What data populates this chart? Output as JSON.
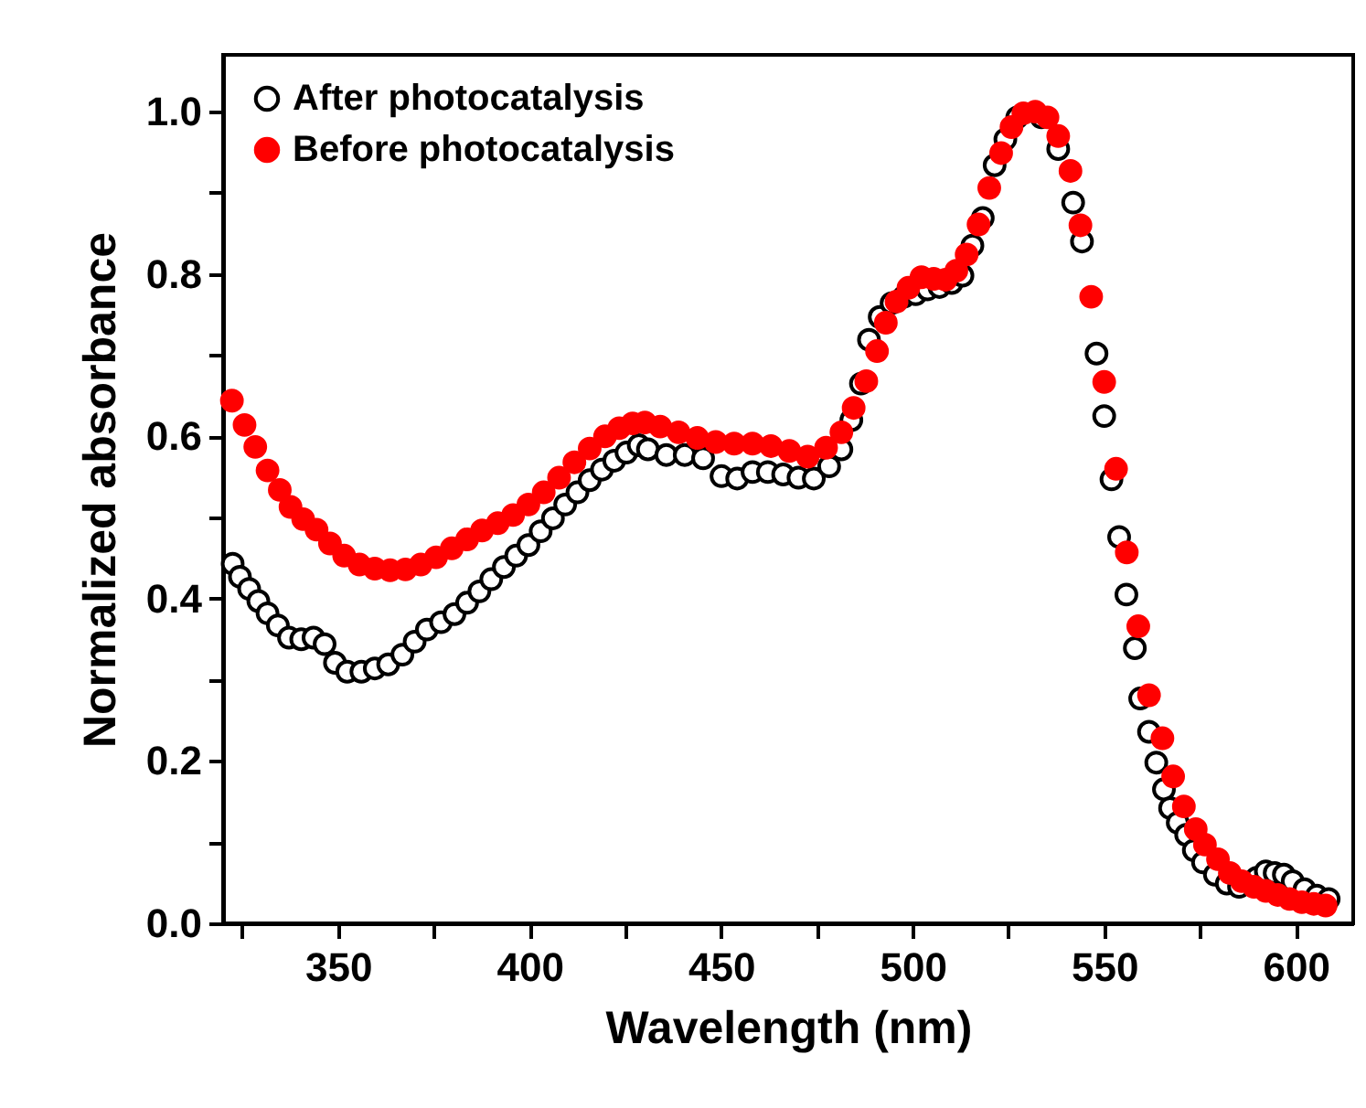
{
  "chart_data": {
    "type": "scatter",
    "xlabel": "Wavelength (nm)",
    "ylabel": "Normalized absorbance",
    "marker": "circle",
    "legend": "top left",
    "grid": false,
    "xlim": [
      320,
      615
    ],
    "ylim": [
      0,
      1.07
    ],
    "xticks": [
      {
        "value": 325,
        "label": null
      },
      350,
      {
        "value": 375,
        "label": null
      },
      400,
      {
        "value": 425,
        "label": null
      },
      450,
      {
        "value": 475,
        "label": null
      },
      500,
      {
        "value": 525,
        "label": null
      },
      550,
      {
        "value": 575,
        "label": null
      },
      600
    ],
    "yticks": [
      {
        "value": 0,
        "label": "0.0"
      },
      {
        "value": 0.1,
        "label": null
      },
      {
        "value": 0.2,
        "label": "0.2"
      },
      {
        "value": 0.3,
        "label": null
      },
      {
        "value": 0.4,
        "label": "0.4"
      },
      {
        "value": 0.5,
        "label": null
      },
      {
        "value": 0.6,
        "label": "0.6"
      },
      {
        "value": 0.7,
        "label": null
      },
      {
        "value": 0.8,
        "label": "0.8"
      },
      {
        "value": 0.9,
        "label": null
      },
      {
        "value": 1.0,
        "label": "1.0"
      }
    ],
    "series": [
      {
        "name": "After photocatalysis",
        "color": "#000000",
        "x": [
          322.5,
          324.4,
          326.8,
          329.2,
          331.6,
          334.3,
          337.2,
          340.4,
          343.6,
          346.5,
          349.2,
          352.4,
          356.1,
          359.6,
          363.1,
          366.8,
          370,
          373.2,
          376.9,
          380.4,
          383.7,
          386.9,
          390,
          393.3,
          396.5,
          399.7,
          402.9,
          406.1,
          409.3,
          412.5,
          415.7,
          418.9,
          422.1,
          425.3,
          428.5,
          430.9,
          435.7,
          440.5,
          445.3,
          450.1,
          454.2,
          458.2,
          462.2,
          466.2,
          470.2,
          474.2,
          478.2,
          481.4,
          484,
          486.5,
          488.6,
          491.4,
          494.5,
          497.7,
          500.8,
          503.9,
          507,
          510.2,
          513,
          515.6,
          518.3,
          521.4,
          524.2,
          527.3,
          533.6,
          538,
          541.9,
          544.2,
          548,
          550,
          551.9,
          553.9,
          555.8,
          558,
          559.4,
          561.7,
          563.6,
          565.6,
          567.2,
          569.2,
          571.4,
          573.4,
          575.8,
          578.9,
          582,
          585.2,
          589.8,
          592.2,
          594.5,
          596.9,
          599.2,
          602.3,
          605.5,
          608.6
        ],
        "values": [
          0.443,
          0.427,
          0.412,
          0.397,
          0.382,
          0.367,
          0.352,
          0.35,
          0.352,
          0.344,
          0.321,
          0.31,
          0.31,
          0.314,
          0.319,
          0.331,
          0.347,
          0.362,
          0.371,
          0.381,
          0.395,
          0.409,
          0.424,
          0.439,
          0.453,
          0.466,
          0.483,
          0.499,
          0.516,
          0.531,
          0.546,
          0.559,
          0.57,
          0.58,
          0.589,
          0.584,
          0.577,
          0.577,
          0.573,
          0.551,
          0.548,
          0.556,
          0.556,
          0.553,
          0.549,
          0.548,
          0.563,
          0.584,
          0.62,
          0.665,
          0.719,
          0.747,
          0.764,
          0.772,
          0.775,
          0.781,
          0.784,
          0.789,
          0.798,
          0.835,
          0.869,
          0.934,
          0.966,
          0.993,
          0.993,
          0.954,
          0.888,
          0.84,
          0.702,
          0.625,
          0.547,
          0.476,
          0.405,
          0.339,
          0.277,
          0.236,
          0.198,
          0.165,
          0.142,
          0.124,
          0.109,
          0.09,
          0.075,
          0.06,
          0.049,
          0.045,
          0.056,
          0.064,
          0.062,
          0.06,
          0.052,
          0.042,
          0.034,
          0.03
        ]
      },
      {
        "name": "Before photocatalysis",
        "color": "#ff0000",
        "x": [
          322.3,
          325.6,
          328.4,
          331.6,
          334.8,
          337.6,
          340.9,
          344.4,
          347.9,
          351.6,
          355.6,
          359.6,
          363.6,
          367.6,
          371.6,
          375.6,
          379.7,
          383.7,
          387.6,
          391.7,
          395.7,
          399.7,
          403.7,
          407.7,
          411.7,
          415.7,
          419.7,
          423.4,
          426.9,
          430.1,
          434.1,
          438.9,
          443.8,
          448.6,
          453.4,
          458.2,
          463,
          467.8,
          472.6,
          477.4,
          481.4,
          484.6,
          487.9,
          490.7,
          493,
          495.8,
          498.9,
          502.3,
          505.5,
          508.6,
          511.4,
          514.1,
          517.2,
          520,
          523.1,
          525.8,
          528.9,
          532,
          535.2,
          538,
          541.2,
          543.8,
          546.6,
          550,
          553.1,
          555.9,
          558.9,
          561.7,
          565.2,
          568,
          570.8,
          573.9,
          576.3,
          579.7,
          582.8,
          585.9,
          589.1,
          592.2,
          595.3,
          598.4,
          601.6,
          604.7,
          607.8
        ],
        "values": [
          0.644,
          0.614,
          0.587,
          0.558,
          0.534,
          0.513,
          0.498,
          0.485,
          0.468,
          0.453,
          0.442,
          0.437,
          0.435,
          0.436,
          0.442,
          0.451,
          0.462,
          0.473,
          0.484,
          0.493,
          0.503,
          0.516,
          0.531,
          0.549,
          0.568,
          0.585,
          0.6,
          0.61,
          0.616,
          0.617,
          0.612,
          0.605,
          0.598,
          0.593,
          0.591,
          0.591,
          0.588,
          0.582,
          0.575,
          0.586,
          0.605,
          0.635,
          0.668,
          0.705,
          0.74,
          0.766,
          0.783,
          0.796,
          0.794,
          0.793,
          0.804,
          0.824,
          0.861,
          0.906,
          0.949,
          0.981,
          0.998,
          1.0,
          0.993,
          0.97,
          0.927,
          0.86,
          0.772,
          0.667,
          0.56,
          0.457,
          0.366,
          0.281,
          0.228,
          0.181,
          0.144,
          0.116,
          0.097,
          0.079,
          0.062,
          0.052,
          0.045,
          0.04,
          0.035,
          0.03,
          0.026,
          0.024,
          0.022
        ]
      }
    ]
  }
}
